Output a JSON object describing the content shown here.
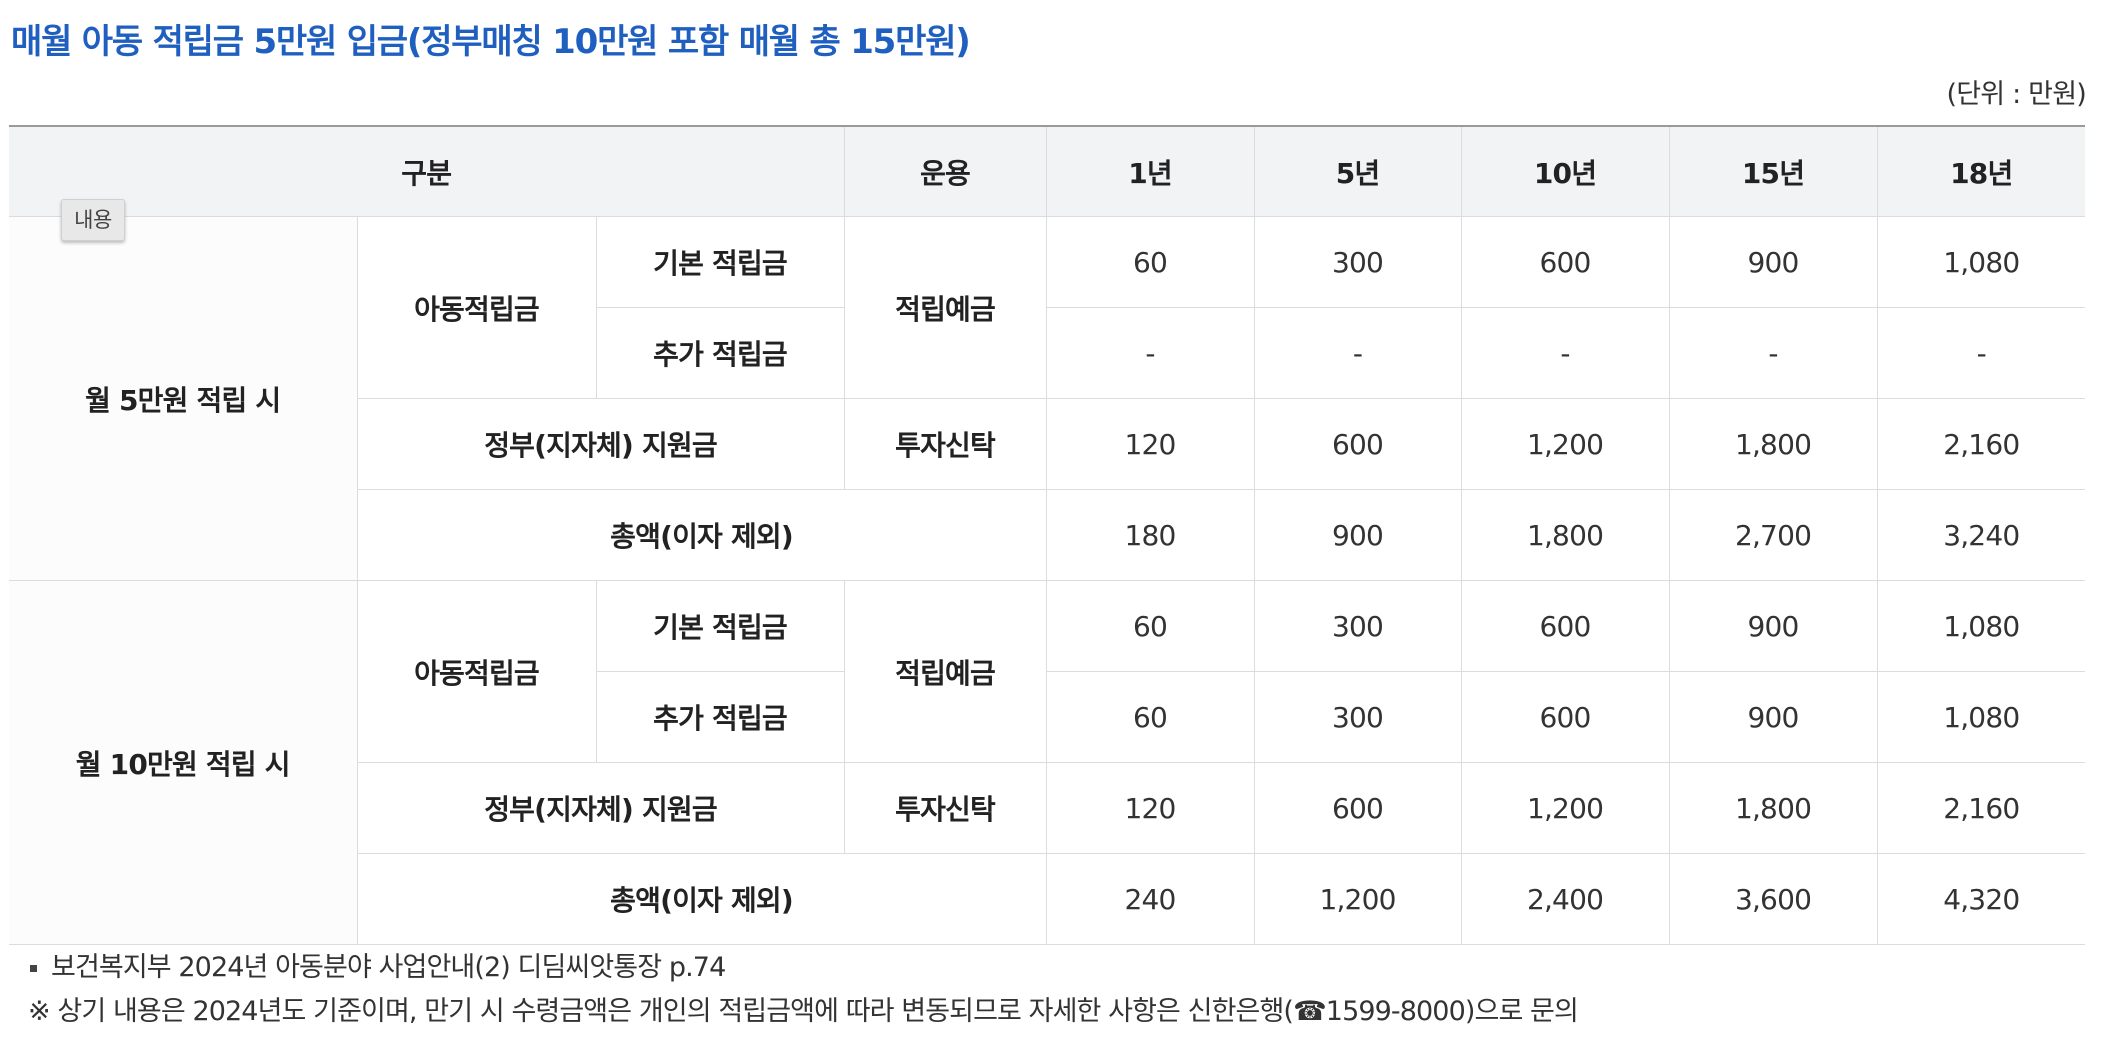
{
  "title": "매월 아동 적립금 5만원 입금(정부매칭 10만원 포함 매월 총 15만원)",
  "unit": "(단위 : 만원)",
  "tooltip": "내용",
  "header": {
    "category": "구분",
    "operation": "운용",
    "years": [
      "1년",
      "5년",
      "10년",
      "15년",
      "18년"
    ]
  },
  "groups": [
    {
      "label": "월 5만원 적립 시",
      "child_savings": "아동적립금",
      "basic_label": "기본 적립금",
      "extra_label": "추가 적립금",
      "deposit_op": "적립예금",
      "gov_label": "정부(지자체) 지원금",
      "gov_op": "투자신탁",
      "total_label": "총액(이자 제외)",
      "basic": [
        "60",
        "300",
        "600",
        "900",
        "1,080"
      ],
      "extra": [
        "-",
        "-",
        "-",
        "-",
        "-"
      ],
      "gov": [
        "120",
        "600",
        "1,200",
        "1,800",
        "2,160"
      ],
      "total": [
        "180",
        "900",
        "1,800",
        "2,700",
        "3,240"
      ]
    },
    {
      "label": "월 10만원 적립 시",
      "child_savings": "아동적립금",
      "basic_label": "기본 적립금",
      "extra_label": "추가 적립금",
      "deposit_op": "적립예금",
      "gov_label": "정부(지자체) 지원금",
      "gov_op": "투자신탁",
      "total_label": "총액(이자 제외)",
      "basic": [
        "60",
        "300",
        "600",
        "900",
        "1,080"
      ],
      "extra": [
        "60",
        "300",
        "600",
        "900",
        "1,080"
      ],
      "gov": [
        "120",
        "600",
        "1,200",
        "1,800",
        "2,160"
      ],
      "total": [
        "240",
        "1,200",
        "2,400",
        "3,600",
        "4,320"
      ]
    }
  ],
  "notes": {
    "source": "보건복지부 2024년 아동분야 사업안내(2) 디딤씨앗통장 p.74",
    "disclaimer": "※ 상기 내용은 2024년도 기준이며, 만기 시 수령금액은 개인의 적립금액에 따라 변동되므로 자세한 사항은 신한은행(☎1599-8000)으로 문의"
  }
}
